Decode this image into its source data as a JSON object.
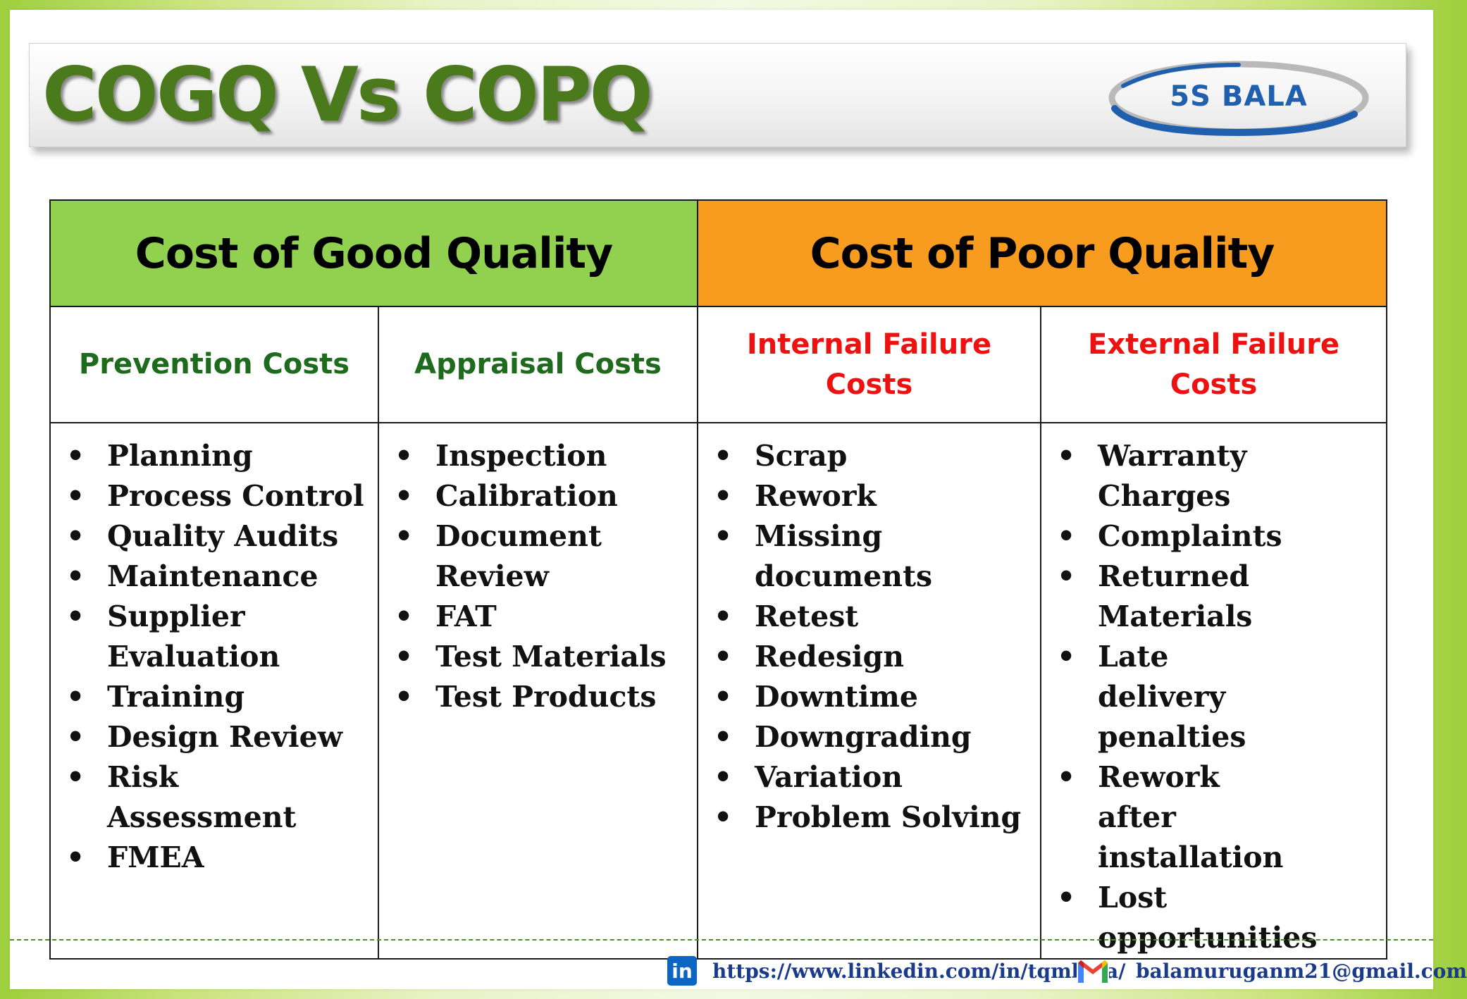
{
  "title": "COGQ Vs COPQ",
  "logo": {
    "text": "5S BALA"
  },
  "table": {
    "good_header": "Cost of Good Quality",
    "poor_header": "Cost of Poor Quality",
    "columns": [
      {
        "heading": "Prevention Costs",
        "items": [
          "Planning",
          "Process Control",
          "Quality Audits",
          "Maintenance",
          "Supplier Evaluation",
          "Training",
          "Design Review",
          "Risk Assessment",
          "FMEA"
        ]
      },
      {
        "heading": "Appraisal Costs",
        "items": [
          "Inspection",
          "Calibration",
          "Document Review",
          "FAT",
          "Test Materials",
          "Test Products"
        ]
      },
      {
        "heading_line1": "Internal Failure",
        "heading_line2": "Costs",
        "items": [
          "Scrap",
          "Rework",
          "Missing documents",
          "Retest",
          "Redesign",
          "Downtime",
          "Downgrading",
          "Variation",
          "Problem Solving"
        ]
      },
      {
        "heading_line1": "External Failure",
        "heading_line2": "Costs",
        "items": [
          "Warranty Charges",
          "Complaints",
          "Returned Materials",
          "Late delivery penalties",
          "Rework after installation",
          "Lost opportunities"
        ]
      }
    ]
  },
  "footer": {
    "linkedin_icon_label": "in",
    "linkedin_url": "https://www.linkedin.com/in/tqmbala/",
    "email": "balamuruganm21@gmail.com"
  },
  "colors": {
    "title_green": "#4a7a1c",
    "good_header_bg": "#92d050",
    "poor_header_bg": "#f79c1e",
    "sub_green": "#1e6b1e",
    "sub_red": "#ee1111",
    "logo_blue": "#1f5fae"
  },
  "icons": [
    "bullet",
    "linkedin-icon",
    "gmail-icon"
  ]
}
